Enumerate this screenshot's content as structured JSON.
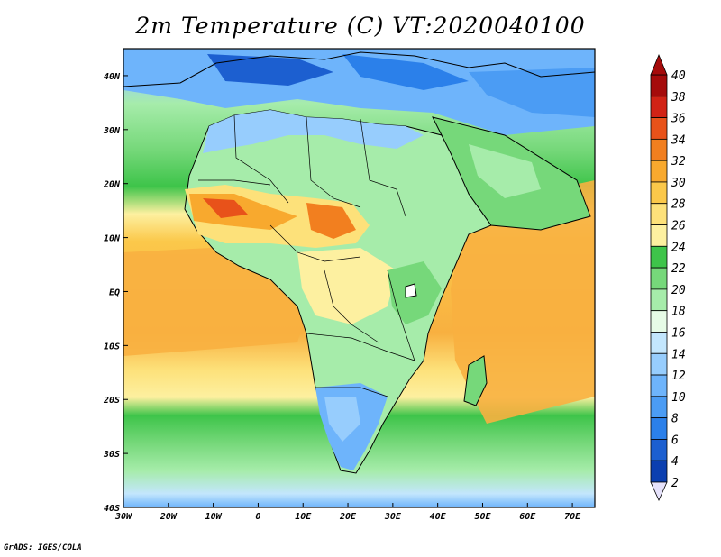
{
  "title": "2m Temperature (C) VT:2020040100",
  "credit": "GrADS: IGES/COLA",
  "map": {
    "type": "heatmap",
    "region": "Africa",
    "lon_range": [
      -30,
      75
    ],
    "lat_range": [
      -40,
      45
    ],
    "lon_ticks": [
      "30W",
      "20W",
      "10W",
      "0",
      "10E",
      "20E",
      "30E",
      "40E",
      "50E",
      "60E",
      "70E"
    ],
    "lat_ticks": [
      "40N",
      "30N",
      "20N",
      "10N",
      "EQ",
      "10S",
      "20S",
      "30S",
      "40S"
    ],
    "lon_tick_values": [
      -30,
      -20,
      -10,
      0,
      10,
      20,
      30,
      40,
      50,
      60,
      70
    ],
    "lat_tick_values": [
      40,
      30,
      20,
      10,
      0,
      -10,
      -20,
      -30,
      -40
    ]
  },
  "colorbar": {
    "levels": [
      "2",
      "4",
      "6",
      "8",
      "10",
      "12",
      "14",
      "16",
      "18",
      "20",
      "22",
      "24",
      "26",
      "28",
      "30",
      "32",
      "34",
      "36",
      "38",
      "40"
    ],
    "colors": [
      "#1d1f8a",
      "#0b3fb0",
      "#1c5fd0",
      "#2b80ea",
      "#4b9cf4",
      "#6eb4fb",
      "#97cdfd",
      "#c3e6fd",
      "#e6fbe6",
      "#a6ecaa",
      "#76d87a",
      "#3ec44a",
      "#fdf0a0",
      "#fde17a",
      "#fbc84a",
      "#f8a92e",
      "#f27f1f",
      "#e8521a",
      "#d12316",
      "#a50b0b"
    ],
    "min_arrow_color": "#e6e2fb",
    "max_arrow_color": "#a50b0b"
  },
  "colors": {
    "ocean_tropical": "#f8b040",
    "ocean_cool": "#76d87a",
    "land_border": "#000000"
  }
}
